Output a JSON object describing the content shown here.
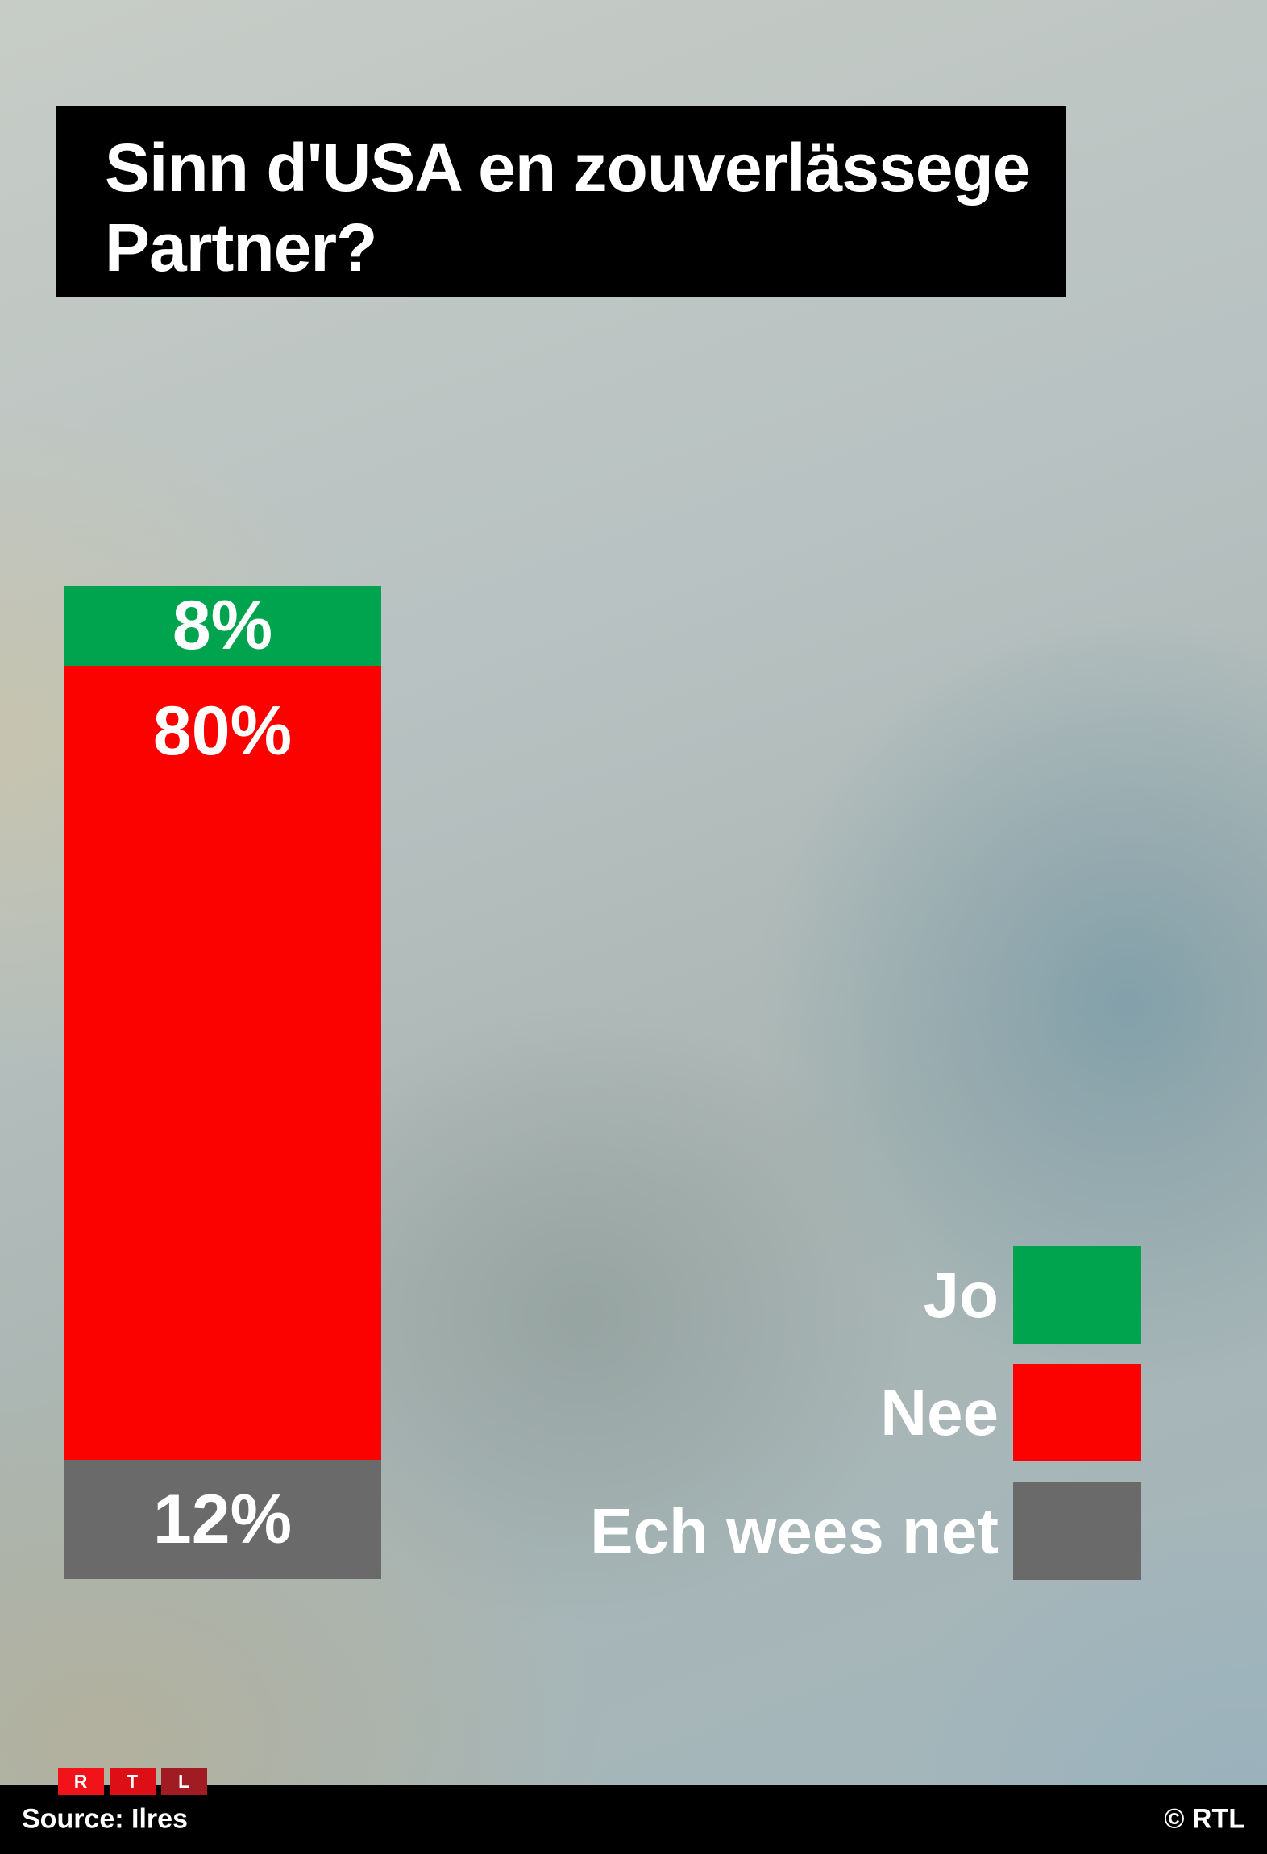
{
  "title": {
    "line1": "Sinn d'USA en zouverlässege",
    "line2": "Partner?"
  },
  "chart_data": {
    "type": "bar",
    "stacked": true,
    "orientation": "vertical",
    "title": "Sinn d'USA en zouverlässege Partner?",
    "categories": [
      "Jo",
      "Nee",
      "Ech wees net"
    ],
    "values": [
      8,
      80,
      12
    ],
    "unit": "%",
    "value_labels": [
      "8%",
      "80%",
      "12%"
    ],
    "colors": [
      "#00a44f",
      "#fb0200",
      "#6a6a6b"
    ],
    "legend_position": "right",
    "source": "Ilres"
  },
  "legend": {
    "items": [
      {
        "label": "Jo",
        "color": "#00a44f"
      },
      {
        "label": "Nee",
        "color": "#fb0200"
      },
      {
        "label": "Ech wees net",
        "color": "#6a6a6b"
      }
    ]
  },
  "footer": {
    "source": "Source: Ilres",
    "copyright": "© RTL",
    "logo": {
      "letters": [
        "R",
        "T",
        "L"
      ],
      "colors": [
        "#f1121a",
        "#dd0f16",
        "#a01c22"
      ]
    }
  }
}
